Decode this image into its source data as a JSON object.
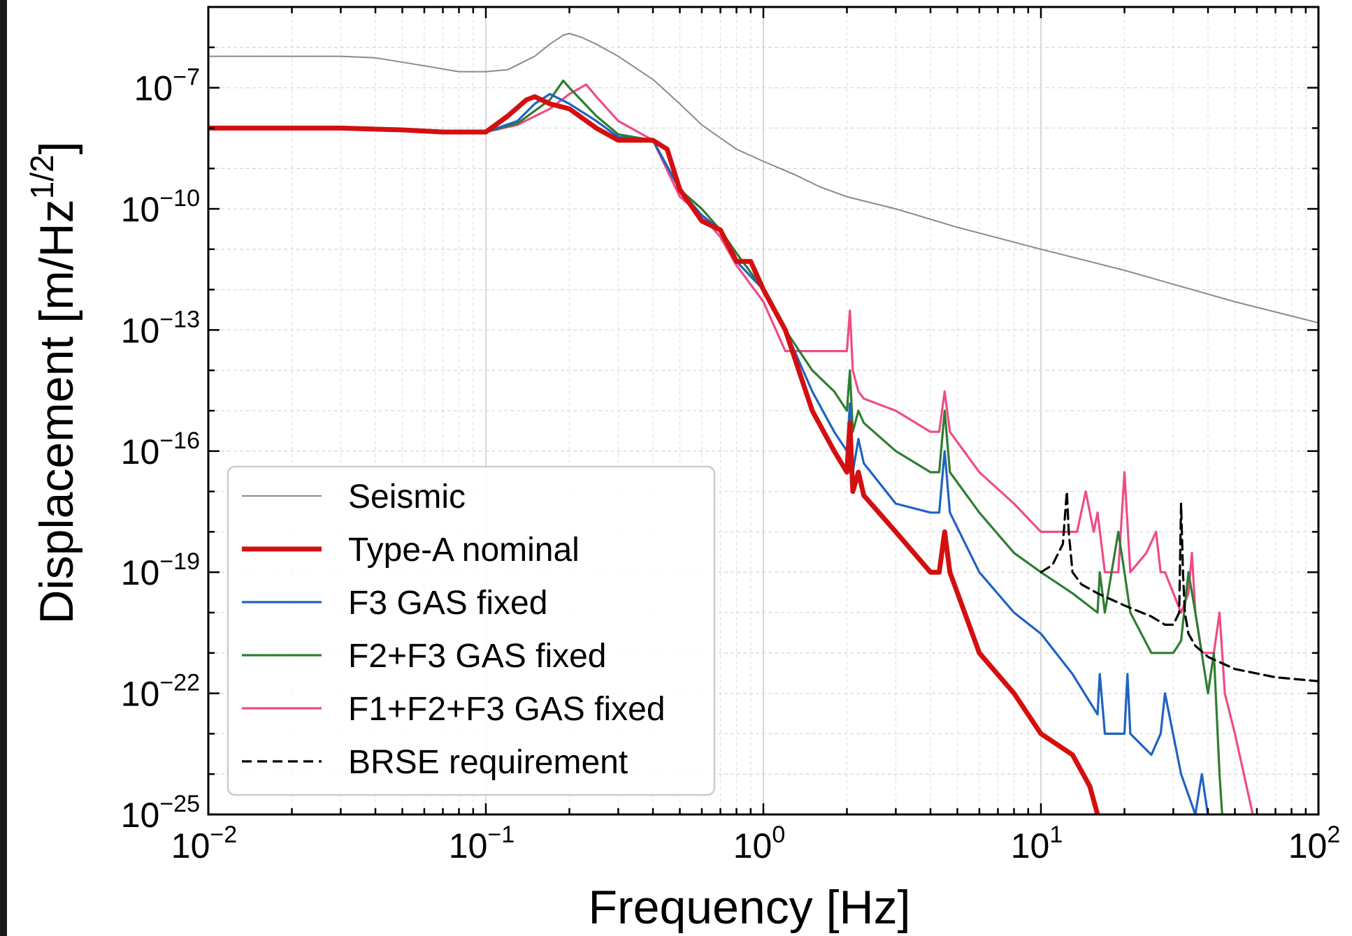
{
  "chart_data": {
    "type": "line",
    "title": "",
    "xlabel": "Frequency [Hz]",
    "ylabel": "Displacement [m/Hz^(1/2)]",
    "ylabel_parts": {
      "main": "Displacement [m/Hz",
      "sup": "1/2",
      "close": "]"
    },
    "xscale": "log",
    "yscale": "log",
    "xlim": [
      0.01,
      100
    ],
    "ylim": [
      1e-25,
      1e-05
    ],
    "grid": true,
    "legend_position": "lower-left",
    "x_ticks": [
      {
        "base": "10",
        "exp": "−2"
      },
      {
        "base": "10",
        "exp": "−1"
      },
      {
        "base": "10",
        "exp": "0"
      },
      {
        "base": "10",
        "exp": "1"
      },
      {
        "base": "10",
        "exp": "2"
      }
    ],
    "y_ticks": [
      {
        "base": "10",
        "exp": "−25"
      },
      {
        "base": "10",
        "exp": "−22"
      },
      {
        "base": "10",
        "exp": "−19"
      },
      {
        "base": "10",
        "exp": "−16"
      },
      {
        "base": "10",
        "exp": "−13"
      },
      {
        "base": "10",
        "exp": "−10"
      },
      {
        "base": "10",
        "exp": "−7"
      }
    ],
    "series": [
      {
        "name": "Seismic",
        "color": "#8a8a8a",
        "style": "solid",
        "x": [
          0.01,
          0.03,
          0.04,
          0.06,
          0.08,
          0.1,
          0.12,
          0.15,
          0.17,
          0.19,
          0.2,
          0.22,
          0.25,
          0.3,
          0.4,
          0.5,
          0.6,
          0.8,
          1.0,
          1.3,
          1.6,
          2.0,
          3.0,
          5.0,
          10.0,
          20.0,
          50.0,
          100.0
        ],
        "y": [
          6e-07,
          6e-07,
          5.5e-07,
          3.5e-07,
          2.5e-07,
          2.5e-07,
          2.8e-07,
          6e-07,
          1.2e-06,
          2e-06,
          2.2e-06,
          1.8e-06,
          1.2e-06,
          6e-07,
          1.6e-07,
          4e-08,
          1.2e-08,
          3e-09,
          1.5e-09,
          7e-10,
          3.5e-10,
          2e-10,
          1e-10,
          3.5e-11,
          1e-11,
          3e-12,
          5e-13,
          1.5e-13
        ]
      },
      {
        "name": "Type-A nominal",
        "color": "#d40f0f",
        "style": "solid",
        "width": "thick",
        "x": [
          0.01,
          0.03,
          0.05,
          0.07,
          0.1,
          0.12,
          0.14,
          0.15,
          0.17,
          0.2,
          0.25,
          0.3,
          0.4,
          0.45,
          0.5,
          0.6,
          0.7,
          0.8,
          0.9,
          1.0,
          1.2,
          1.5,
          1.8,
          2.0,
          2.05,
          2.1,
          2.2,
          2.3,
          3.0,
          4.0,
          4.3,
          4.5,
          4.7,
          6.0,
          8.0,
          10.0,
          13.0,
          15.0,
          16.0
        ],
        "y": [
          1e-08,
          1e-08,
          9e-09,
          8e-09,
          8e-09,
          2e-08,
          5e-08,
          6e-08,
          4e-08,
          3e-08,
          1e-08,
          5e-09,
          5e-09,
          3e-09,
          3e-10,
          5e-11,
          3e-11,
          5e-12,
          5e-12,
          1e-12,
          1e-13,
          1e-15,
          1e-16,
          3e-17,
          5e-16,
          1e-17,
          3e-17,
          8e-18,
          1e-18,
          1e-19,
          1e-19,
          1e-18,
          1e-19,
          1e-21,
          1e-22,
          1e-23,
          3e-24,
          5e-25,
          1e-25
        ]
      },
      {
        "name": "F3 GAS fixed",
        "color": "#1f63c0",
        "style": "solid",
        "x": [
          0.01,
          0.03,
          0.05,
          0.07,
          0.1,
          0.13,
          0.15,
          0.17,
          0.2,
          0.25,
          0.3,
          0.4,
          0.5,
          0.6,
          0.7,
          0.8,
          1.0,
          1.2,
          1.5,
          1.8,
          2.0,
          2.05,
          2.1,
          2.2,
          2.3,
          3.0,
          4.0,
          4.3,
          4.5,
          4.7,
          6.0,
          8.0,
          10.0,
          13.0,
          16.0,
          16.3,
          17.0,
          20.0,
          20.5,
          21.0,
          25.0,
          27.0,
          28.0,
          32.0,
          36.0,
          38.0,
          42.0
        ],
        "y": [
          1e-08,
          1e-08,
          9e-09,
          8e-09,
          8e-09,
          1.5e-08,
          4e-08,
          7e-08,
          4e-08,
          1.5e-08,
          6e-09,
          5e-09,
          3e-10,
          7e-11,
          3e-11,
          5e-12,
          1e-12,
          1e-13,
          3e-15,
          3e-16,
          1e-16,
          1.5e-15,
          3e-17,
          2e-16,
          5e-17,
          5e-18,
          3e-18,
          3e-18,
          1e-16,
          3e-18,
          1e-19,
          1e-20,
          3e-21,
          3e-22,
          3e-23,
          3e-22,
          1e-23,
          1e-23,
          3e-22,
          1e-23,
          3e-24,
          1e-23,
          1e-22,
          1e-24,
          1e-25,
          1e-24,
          1e-26
        ]
      },
      {
        "name": "F2+F3 GAS fixed",
        "color": "#2e7d32",
        "style": "solid",
        "x": [
          0.01,
          0.03,
          0.05,
          0.07,
          0.1,
          0.13,
          0.17,
          0.19,
          0.2,
          0.25,
          0.3,
          0.4,
          0.5,
          0.6,
          0.7,
          0.8,
          1.0,
          1.2,
          1.5,
          1.8,
          2.0,
          2.05,
          2.1,
          2.2,
          2.3,
          3.0,
          4.0,
          4.3,
          4.5,
          4.7,
          6.0,
          8.0,
          10.0,
          13.0,
          16.0,
          16.3,
          17.0,
          19.0,
          20.0,
          21.0,
          25.0,
          30.0,
          32.0,
          34.0,
          36.0,
          40.0,
          42.0,
          44.0,
          45.0
        ],
        "y": [
          1e-08,
          1e-08,
          9e-09,
          8e-09,
          8e-09,
          1.3e-08,
          5e-08,
          1.5e-07,
          1e-07,
          2e-08,
          7e-09,
          5e-09,
          3e-10,
          1e-10,
          3e-11,
          8e-12,
          1e-12,
          1e-13,
          1e-14,
          3e-15,
          1e-15,
          1e-14,
          3e-16,
          1e-15,
          5e-16,
          1e-16,
          3e-17,
          3e-17,
          1e-15,
          3e-17,
          3e-18,
          3e-19,
          1e-19,
          3e-20,
          1e-20,
          1e-19,
          1e-20,
          1e-18,
          1e-19,
          1e-20,
          1e-21,
          1e-21,
          2e-21,
          1e-19,
          1e-20,
          1e-22,
          1e-21,
          1e-24,
          1e-25
        ]
      },
      {
        "name": "F1+F2+F3 GAS fixed",
        "color": "#ee4c88",
        "style": "solid",
        "x": [
          0.01,
          0.03,
          0.05,
          0.07,
          0.1,
          0.13,
          0.17,
          0.2,
          0.23,
          0.25,
          0.3,
          0.4,
          0.5,
          0.6,
          0.7,
          0.8,
          1.0,
          1.2,
          1.5,
          1.8,
          2.0,
          2.05,
          2.1,
          2.2,
          2.3,
          3.0,
          4.0,
          4.3,
          4.5,
          4.7,
          6.0,
          8.0,
          10.0,
          12.0,
          13.5,
          14.5,
          15.5,
          16.0,
          17.0,
          19.0,
          20.0,
          21.0,
          24.0,
          26.0,
          27.0,
          28.0,
          32.0,
          34.0,
          35.0,
          36.0,
          38.0,
          42.0,
          44.0,
          46.0,
          50.0,
          58.0
        ],
        "y": [
          1e-08,
          1e-08,
          9e-09,
          8e-09,
          8e-09,
          1.2e-08,
          3e-08,
          7e-08,
          1.2e-07,
          6e-08,
          1.5e-08,
          5e-09,
          2e-10,
          7e-11,
          2e-11,
          4e-12,
          5e-13,
          3e-14,
          3e-14,
          3e-14,
          3e-14,
          3e-13,
          1e-14,
          3e-15,
          2e-15,
          1e-15,
          3e-16,
          3e-16,
          3e-15,
          3e-16,
          3e-17,
          5e-18,
          1e-18,
          1e-18,
          1e-18,
          1e-17,
          1e-18,
          3e-18,
          1e-19,
          1e-19,
          3e-17,
          1e-19,
          3e-19,
          1e-18,
          1e-19,
          1e-19,
          1e-20,
          3e-20,
          3e-19,
          1e-20,
          1e-21,
          1e-21,
          1e-20,
          1e-22,
          1e-23,
          1e-25
        ]
      },
      {
        "name": "BRSE requirement",
        "color": "#000000",
        "style": "dashed",
        "x": [
          10.0,
          11.0,
          12.0,
          12.4,
          12.6,
          13.0,
          14.0,
          16.0,
          20.0,
          25.0,
          28.0,
          30.0,
          31.5,
          32.0,
          32.5,
          33.0,
          34.0,
          36.0,
          40.0,
          50.0,
          70.0,
          100.0
        ],
        "y": [
          1e-19,
          1.5e-19,
          5e-19,
          1e-17,
          1e-18,
          1e-19,
          5e-20,
          3e-20,
          1.5e-20,
          8e-21,
          5e-21,
          5e-21,
          1e-20,
          5e-18,
          1e-19,
          1e-20,
          3e-21,
          1.5e-21,
          8e-22,
          4e-22,
          2.5e-22,
          2e-22
        ]
      }
    ]
  }
}
